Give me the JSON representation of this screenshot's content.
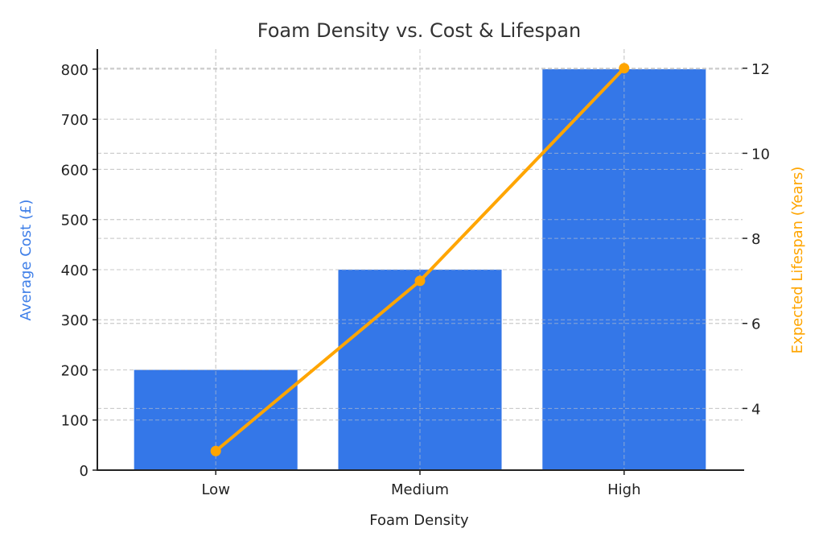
{
  "chart_data": {
    "type": "bar",
    "title": "Foam Density vs. Cost & Lifespan",
    "xlabel": "Foam Density",
    "ylabel": "Average Cost (£)",
    "y2label": "Expected Lifespan (Years)",
    "categories": [
      "Low",
      "Medium",
      "High"
    ],
    "series": [
      {
        "name": "Average Cost (£)",
        "type": "bar",
        "axis": "left",
        "values": [
          200,
          400,
          800
        ],
        "color": "#3477e8"
      },
      {
        "name": "Expected Lifespan (Years)",
        "type": "line",
        "axis": "right",
        "values": [
          3,
          7,
          12
        ],
        "color": "#ffa500"
      }
    ],
    "ylim": [
      0,
      840
    ],
    "y2lim": [
      2.55,
      12.45
    ],
    "yticks": [
      0,
      100,
      200,
      300,
      400,
      500,
      600,
      700,
      800
    ],
    "y2ticks": [
      4,
      6,
      8,
      10,
      12
    ],
    "grid": true,
    "legend": null
  },
  "colors": {
    "bar": "#3477e8",
    "line": "#ffa500",
    "left_axis_label": "#3f7fe8",
    "right_axis_label": "#ffa500",
    "text": "#222222"
  }
}
